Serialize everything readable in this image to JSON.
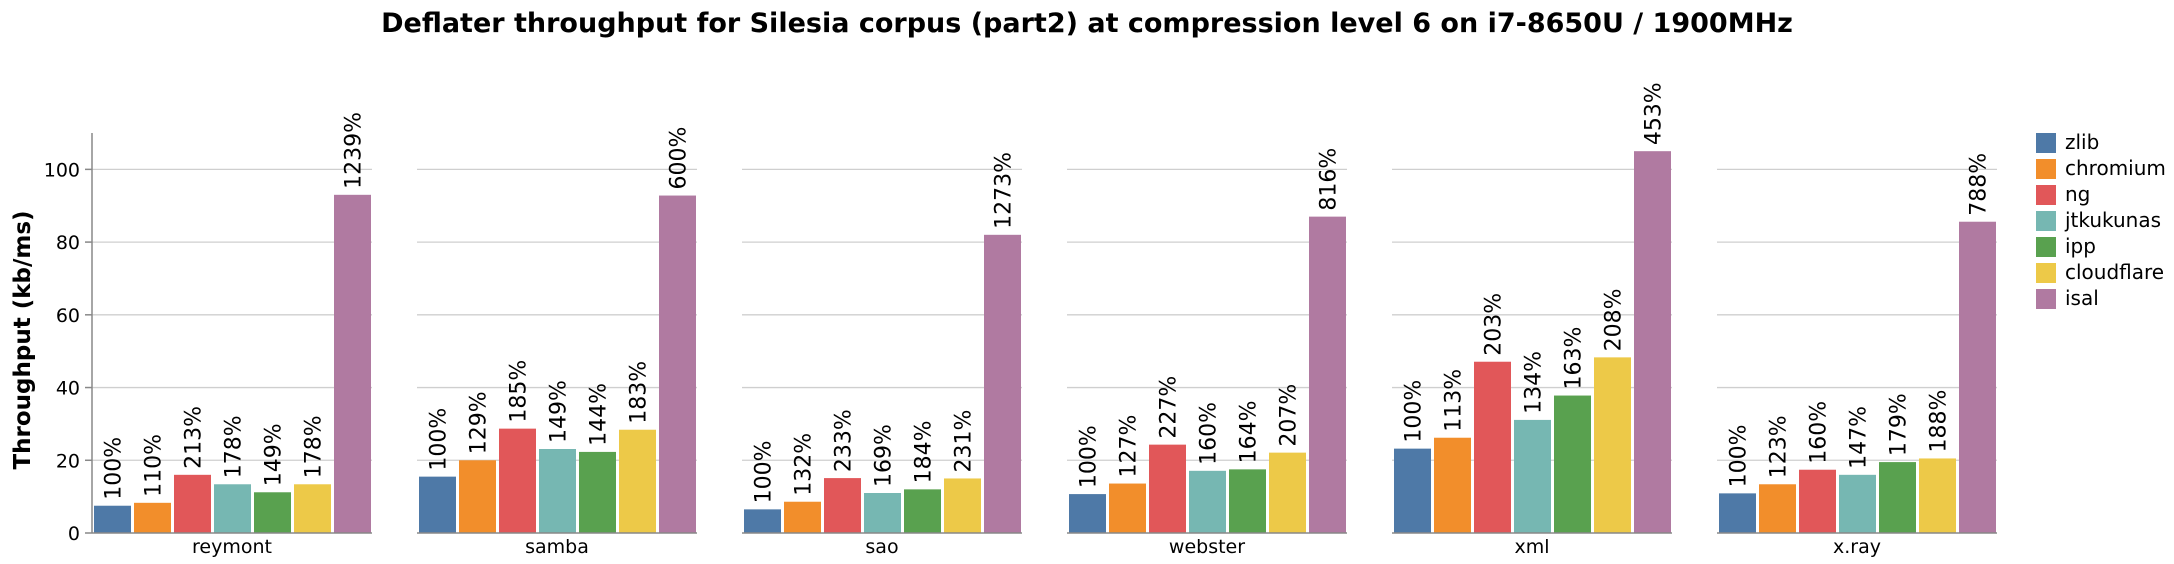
{
  "chart_data": {
    "type": "bar",
    "title": "Deflater throughput for Silesia corpus (part2) at compression level 6 on i7-8650U / 1900MHz",
    "ylabel": "Throughput (kb/ms)",
    "xlabel": "",
    "ylim": [
      0,
      110
    ],
    "yticks": [
      0,
      20,
      40,
      60,
      80,
      100
    ],
    "grid": true,
    "legend_position": "right",
    "categories": [
      "reymont",
      "samba",
      "sao",
      "webster",
      "xml",
      "x.ray"
    ],
    "series": [
      {
        "name": "zlib",
        "color": "#4e79a7",
        "values": [
          7.5,
          15.5,
          6.5,
          10.7,
          23.2,
          10.9
        ],
        "labels": [
          "100%",
          "100%",
          "100%",
          "100%",
          "100%",
          "100%"
        ]
      },
      {
        "name": "chromium",
        "color": "#f28e2b",
        "values": [
          8.3,
          20.0,
          8.6,
          13.6,
          26.2,
          13.4
        ],
        "labels": [
          "110%",
          "129%",
          "132%",
          "127%",
          "113%",
          "123%"
        ]
      },
      {
        "name": "ng",
        "color": "#e15759",
        "values": [
          16.0,
          28.7,
          15.1,
          24.3,
          47.1,
          17.4
        ],
        "labels": [
          "213%",
          "185%",
          "233%",
          "227%",
          "203%",
          "160%"
        ]
      },
      {
        "name": "jtkukunas",
        "color": "#76b7b2",
        "values": [
          13.4,
          23.1,
          11.0,
          17.1,
          31.1,
          16.0
        ],
        "labels": [
          "178%",
          "149%",
          "169%",
          "160%",
          "134%",
          "147%"
        ]
      },
      {
        "name": "ipp",
        "color": "#59a14f",
        "values": [
          11.2,
          22.3,
          12.0,
          17.5,
          37.8,
          19.5
        ],
        "labels": [
          "149%",
          "144%",
          "184%",
          "164%",
          "163%",
          "179%"
        ]
      },
      {
        "name": "cloudflare",
        "color": "#edc948",
        "values": [
          13.4,
          28.4,
          15.0,
          22.1,
          48.3,
          20.5
        ],
        "labels": [
          "178%",
          "183%",
          "231%",
          "207%",
          "208%",
          "188%"
        ]
      },
      {
        "name": "isal",
        "color": "#b07aa1",
        "values": [
          93.0,
          92.8,
          82.0,
          87.0,
          105.0,
          85.6
        ],
        "labels": [
          "1239%",
          "600%",
          "1273%",
          "816%",
          "453%",
          "788%"
        ]
      }
    ]
  }
}
